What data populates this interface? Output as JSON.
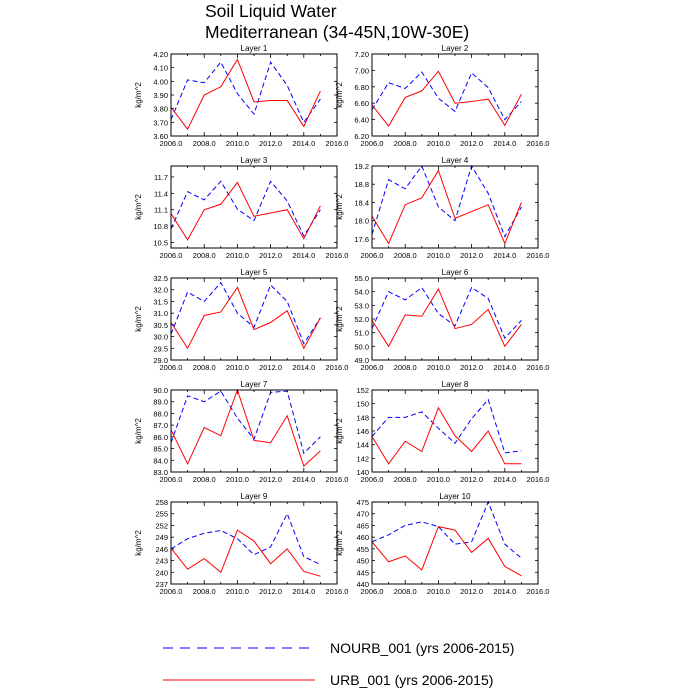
{
  "figure": {
    "title_line1": "Soil Liquid Water",
    "title_line2": "Mediterranean (34-45N,10W-30E)"
  },
  "legend": [
    {
      "label": "NOURB_001 (yrs 2006-2015)",
      "color": "#0000ff",
      "dash": true
    },
    {
      "label": "URB_001 (yrs 2006-2015)",
      "color": "#ff0000",
      "dash": false
    }
  ],
  "chart_data": [
    {
      "type": "line",
      "title": "Layer 1",
      "ylabel": "kg/m^2",
      "xlim": [
        2006,
        2016
      ],
      "ylim": [
        3.6,
        4.2
      ],
      "xticks": [
        2006,
        2008,
        2010,
        2012,
        2014,
        2016
      ],
      "xtick_labels": [
        "2006.0",
        "2008.0",
        "2010.0",
        "2012.0",
        "2014.0",
        "2016.0"
      ],
      "yticks": [
        3.6,
        3.7,
        3.8,
        3.9,
        4.0,
        4.1,
        4.2
      ],
      "ytick_labels": [
        "3.60",
        "3.70",
        "3.80",
        "3.90",
        "4.00",
        "4.10",
        "4.20"
      ],
      "x": [
        2006,
        2007,
        2008,
        2009,
        2010,
        2011,
        2012,
        2013,
        2014,
        2015
      ],
      "series": [
        {
          "name": "NOURB_001",
          "values": [
            3.72,
            4.01,
            3.99,
            4.14,
            3.91,
            3.76,
            4.14,
            3.97,
            3.7,
            3.87
          ]
        },
        {
          "name": "URB_001",
          "values": [
            3.81,
            3.65,
            3.9,
            3.96,
            4.16,
            3.85,
            3.86,
            3.86,
            3.67,
            3.93
          ]
        }
      ]
    },
    {
      "type": "line",
      "title": "Layer 2",
      "ylabel": "kg/m^2",
      "xlim": [
        2006,
        2016
      ],
      "ylim": [
        6.2,
        7.2
      ],
      "xticks": [
        2006,
        2008,
        2010,
        2012,
        2014,
        2016
      ],
      "xtick_labels": [
        "2006.0",
        "2008.0",
        "2010.0",
        "2012.0",
        "2014.0",
        "2016.0"
      ],
      "yticks": [
        6.2,
        6.4,
        6.6,
        6.8,
        7.0,
        7.2
      ],
      "ytick_labels": [
        "6.20",
        "6.40",
        "6.60",
        "6.80",
        "7.00",
        "7.20"
      ],
      "x": [
        2006,
        2007,
        2008,
        2009,
        2010,
        2011,
        2012,
        2013,
        2014,
        2015
      ],
      "series": [
        {
          "name": "NOURB_001",
          "values": [
            6.52,
            6.85,
            6.78,
            6.98,
            6.66,
            6.5,
            6.97,
            6.79,
            6.4,
            6.62
          ]
        },
        {
          "name": "URB_001",
          "values": [
            6.58,
            6.32,
            6.67,
            6.75,
            6.99,
            6.6,
            6.62,
            6.65,
            6.33,
            6.71
          ]
        }
      ]
    },
    {
      "type": "line",
      "title": "Layer 3",
      "ylabel": "kg/m^2",
      "xlim": [
        2006,
        2016
      ],
      "ylim": [
        10.4,
        11.9
      ],
      "xticks": [
        2006,
        2008,
        2010,
        2012,
        2014,
        2016
      ],
      "xtick_labels": [
        "2006.0",
        "2008.0",
        "2010.0",
        "2012.0",
        "2014.0",
        "2016.0"
      ],
      "yticks": [
        10.5,
        10.8,
        11.1,
        11.4,
        11.7
      ],
      "ytick_labels": [
        "10.5",
        "10.8",
        "11.1",
        "11.4",
        "11.7"
      ],
      "x": [
        2006,
        2007,
        2008,
        2009,
        2010,
        2011,
        2012,
        2013,
        2014,
        2015
      ],
      "series": [
        {
          "name": "NOURB_001",
          "values": [
            10.75,
            11.43,
            11.28,
            11.62,
            11.11,
            10.9,
            11.62,
            11.26,
            10.62,
            11.1
          ]
        },
        {
          "name": "URB_001",
          "values": [
            11.03,
            10.55,
            11.1,
            11.2,
            11.6,
            10.98,
            11.04,
            11.1,
            10.57,
            11.17
          ]
        }
      ]
    },
    {
      "type": "line",
      "title": "Layer 4",
      "ylabel": "kg/m^2",
      "xlim": [
        2006,
        2016
      ],
      "ylim": [
        17.4,
        19.2
      ],
      "xticks": [
        2006,
        2008,
        2010,
        2012,
        2014,
        2016
      ],
      "xtick_labels": [
        "2006.0",
        "2008.0",
        "2010.0",
        "2012.0",
        "2014.0",
        "2016.0"
      ],
      "yticks": [
        17.6,
        18.0,
        18.4,
        18.8,
        19.2
      ],
      "ytick_labels": [
        "17.6",
        "18.0",
        "18.4",
        "18.8",
        "19.2"
      ],
      "x": [
        2006,
        2007,
        2008,
        2009,
        2010,
        2011,
        2012,
        2013,
        2014,
        2015
      ],
      "series": [
        {
          "name": "NOURB_001",
          "values": [
            17.7,
            18.9,
            18.7,
            19.2,
            18.3,
            18.0,
            19.2,
            18.6,
            17.65,
            18.3
          ]
        },
        {
          "name": "URB_001",
          "values": [
            18.1,
            17.5,
            18.35,
            18.5,
            19.1,
            18.05,
            18.2,
            18.35,
            17.5,
            18.4
          ]
        }
      ]
    },
    {
      "type": "line",
      "title": "Layer 5",
      "ylabel": "kg/m^2",
      "xlim": [
        2006,
        2016
      ],
      "ylim": [
        29.0,
        32.5
      ],
      "xticks": [
        2006,
        2008,
        2010,
        2012,
        2014,
        2016
      ],
      "xtick_labels": [
        "2006.0",
        "2008.0",
        "2010.0",
        "2012.0",
        "2014.0",
        "2016.0"
      ],
      "yticks": [
        29.0,
        29.5,
        30.0,
        30.5,
        31.0,
        31.5,
        32.0,
        32.5
      ],
      "ytick_labels": [
        "29.0",
        "29.5",
        "30.0",
        "30.5",
        "31.0",
        "31.5",
        "32.0",
        "32.5"
      ],
      "x": [
        2006,
        2007,
        2008,
        2009,
        2010,
        2011,
        2012,
        2013,
        2014,
        2015
      ],
      "series": [
        {
          "name": "NOURB_001",
          "values": [
            30.1,
            31.9,
            31.5,
            32.3,
            31.0,
            30.4,
            32.2,
            31.5,
            29.7,
            30.8
          ]
        },
        {
          "name": "URB_001",
          "values": [
            30.6,
            29.5,
            30.9,
            31.05,
            32.1,
            30.3,
            30.6,
            31.1,
            29.5,
            30.8
          ]
        }
      ]
    },
    {
      "type": "line",
      "title": "Layer 6",
      "ylabel": "kg/m^2",
      "xlim": [
        2006,
        2016
      ],
      "ylim": [
        49.0,
        55.0
      ],
      "xticks": [
        2006,
        2008,
        2010,
        2012,
        2014,
        2016
      ],
      "xtick_labels": [
        "2006.0",
        "2008.0",
        "2010.0",
        "2012.0",
        "2014.0",
        "2016.0"
      ],
      "yticks": [
        49.0,
        50.0,
        51.0,
        52.0,
        53.0,
        54.0,
        55.0
      ],
      "ytick_labels": [
        "49.0",
        "50.0",
        "51.0",
        "52.0",
        "53.0",
        "54.0",
        "55.0"
      ],
      "x": [
        2006,
        2007,
        2008,
        2009,
        2010,
        2011,
        2012,
        2013,
        2014,
        2015
      ],
      "series": [
        {
          "name": "NOURB_001",
          "values": [
            51.3,
            54.0,
            53.4,
            54.3,
            52.4,
            51.5,
            54.3,
            53.5,
            50.6,
            51.9
          ]
        },
        {
          "name": "URB_001",
          "values": [
            51.9,
            50.0,
            52.3,
            52.2,
            54.2,
            51.3,
            51.6,
            52.7,
            50.0,
            51.6
          ]
        }
      ]
    },
    {
      "type": "line",
      "title": "Layer 7",
      "ylabel": "kg/m^2",
      "xlim": [
        2006,
        2016
      ],
      "ylim": [
        83.0,
        90.0
      ],
      "xticks": [
        2006,
        2008,
        2010,
        2012,
        2014,
        2016
      ],
      "xtick_labels": [
        "2006.0",
        "2008.0",
        "2010.0",
        "2012.0",
        "2014.0",
        "2016.0"
      ],
      "yticks": [
        83.0,
        84.0,
        85.0,
        86.0,
        87.0,
        88.0,
        89.0,
        90.0
      ],
      "ytick_labels": [
        "83.0",
        "84.0",
        "85.0",
        "86.0",
        "87.0",
        "88.0",
        "89.0",
        "90.0"
      ],
      "x": [
        2006,
        2007,
        2008,
        2009,
        2010,
        2011,
        2012,
        2013,
        2014,
        2015
      ],
      "series": [
        {
          "name": "NOURB_001",
          "values": [
            85.5,
            89.5,
            89.0,
            89.9,
            87.6,
            85.8,
            89.8,
            89.9,
            84.6,
            86.0
          ]
        },
        {
          "name": "URB_001",
          "values": [
            86.6,
            83.7,
            86.8,
            86.1,
            90.0,
            85.7,
            85.5,
            87.8,
            83.5,
            84.8
          ]
        }
      ]
    },
    {
      "type": "line",
      "title": "Layer 8",
      "ylabel": "kg/m^2",
      "xlim": [
        2006,
        2016
      ],
      "ylim": [
        140,
        152
      ],
      "xticks": [
        2006,
        2008,
        2010,
        2012,
        2014,
        2016
      ],
      "xtick_labels": [
        "2006.0",
        "2008.0",
        "2010.0",
        "2012.0",
        "2014.0",
        "2016.0"
      ],
      "yticks": [
        140,
        142,
        144,
        146,
        148,
        150,
        152
      ],
      "ytick_labels": [
        "140",
        "142",
        "144",
        "146",
        "148",
        "150",
        "152"
      ],
      "x": [
        2006,
        2007,
        2008,
        2009,
        2010,
        2011,
        2012,
        2013,
        2014,
        2015
      ],
      "series": [
        {
          "name": "NOURB_001",
          "values": [
            145.2,
            148.0,
            148.0,
            148.8,
            146.4,
            144.2,
            147.8,
            150.6,
            142.8,
            143.1
          ]
        },
        {
          "name": "URB_001",
          "values": [
            145.2,
            141.2,
            144.5,
            143.0,
            149.4,
            145.3,
            143.0,
            146.0,
            141.2,
            141.2
          ]
        }
      ]
    },
    {
      "type": "line",
      "title": "Layer 9",
      "ylabel": "kg/m^2",
      "xlim": [
        2006,
        2016
      ],
      "ylim": [
        237,
        258
      ],
      "xticks": [
        2006,
        2008,
        2010,
        2012,
        2014,
        2016
      ],
      "xtick_labels": [
        "2006.0",
        "2008.0",
        "2010.0",
        "2012.0",
        "2014.0",
        "2016.0"
      ],
      "yticks": [
        237,
        240,
        243,
        246,
        249,
        252,
        255,
        258
      ],
      "ytick_labels": [
        "237",
        "240",
        "243",
        "246",
        "249",
        "252",
        "255",
        "258"
      ],
      "x": [
        2006,
        2007,
        2008,
        2009,
        2010,
        2011,
        2012,
        2013,
        2014,
        2015
      ],
      "series": [
        {
          "name": "NOURB_001",
          "values": [
            246.0,
            248.6,
            250.0,
            250.7,
            248.6,
            244.5,
            246.5,
            255.0,
            244.0,
            242.0
          ]
        },
        {
          "name": "URB_001",
          "values": [
            246.2,
            240.8,
            243.5,
            240.0,
            250.8,
            248.0,
            242.2,
            246.0,
            240.2,
            239.0
          ]
        }
      ]
    },
    {
      "type": "line",
      "title": "Layer 10",
      "ylabel": "kg/m^2",
      "xlim": [
        2006,
        2016
      ],
      "ylim": [
        440,
        475
      ],
      "xticks": [
        2006,
        2008,
        2010,
        2012,
        2014,
        2016
      ],
      "xtick_labels": [
        "2006.0",
        "2008.0",
        "2010.0",
        "2012.0",
        "2014.0",
        "2016.0"
      ],
      "yticks": [
        440,
        445,
        450,
        455,
        460,
        465,
        470,
        475
      ],
      "ytick_labels": [
        "440",
        "445",
        "450",
        "455",
        "460",
        "465",
        "470",
        "475"
      ],
      "x": [
        2006,
        2007,
        2008,
        2009,
        2010,
        2011,
        2012,
        2013,
        2014,
        2015
      ],
      "series": [
        {
          "name": "NOURB_001",
          "values": [
            458.0,
            461.0,
            465.0,
            466.5,
            464.5,
            457.0,
            458.0,
            475.0,
            457.0,
            451.0
          ]
        },
        {
          "name": "URB_001",
          "values": [
            458.0,
            449.5,
            452.0,
            446.0,
            464.5,
            463.0,
            453.5,
            459.5,
            447.5,
            443.5
          ]
        }
      ]
    }
  ]
}
